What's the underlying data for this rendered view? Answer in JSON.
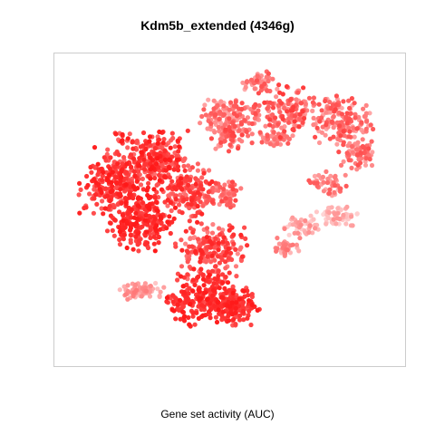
{
  "chart_data": {
    "type": "scatter",
    "title": "Kdm5b_extended (4346g)",
    "xlabel": "",
    "ylabel": "",
    "legend": "none",
    "grid": false,
    "axes_visible": false,
    "color_scale": {
      "low": "#ffffff",
      "high": "#ff0000",
      "meaning": "Gene set activity (AUC)"
    },
    "caption": "Gene set activity (AUC)",
    "xlim": [
      0,
      100
    ],
    "ylim": [
      0,
      100
    ],
    "clusters": [
      {
        "cx": 17,
        "cy": 59,
        "rx": 9,
        "ry": 10,
        "n": 220,
        "intensity": [
          0.65,
          1.0
        ]
      },
      {
        "cx": 28,
        "cy": 66,
        "rx": 10,
        "ry": 9,
        "n": 260,
        "intensity": [
          0.6,
          1.0
        ]
      },
      {
        "cx": 25,
        "cy": 46,
        "rx": 9,
        "ry": 9,
        "n": 220,
        "intensity": [
          0.75,
          1.0
        ]
      },
      {
        "cx": 38,
        "cy": 56,
        "rx": 8,
        "ry": 8,
        "n": 160,
        "intensity": [
          0.5,
          0.95
        ]
      },
      {
        "cx": 45,
        "cy": 37,
        "rx": 10,
        "ry": 9,
        "n": 200,
        "intensity": [
          0.45,
          0.95
        ]
      },
      {
        "cx": 42,
        "cy": 21,
        "rx": 9,
        "ry": 8,
        "n": 220,
        "intensity": [
          0.75,
          1.0
        ]
      },
      {
        "cx": 52,
        "cy": 19,
        "rx": 6,
        "ry": 6,
        "n": 140,
        "intensity": [
          0.7,
          1.0
        ]
      },
      {
        "cx": 25,
        "cy": 24,
        "rx": 6,
        "ry": 3,
        "n": 70,
        "intensity": [
          0.15,
          0.55
        ]
      },
      {
        "cx": 50,
        "cy": 74,
        "rx": 6,
        "ry": 5,
        "n": 80,
        "intensity": [
          0.35,
          0.8
        ]
      },
      {
        "cx": 50,
        "cy": 80,
        "rx": 8,
        "ry": 5,
        "n": 110,
        "intensity": [
          0.3,
          0.75
        ]
      },
      {
        "cx": 58,
        "cy": 91,
        "rx": 5,
        "ry": 3,
        "n": 45,
        "intensity": [
          0.3,
          0.75
        ]
      },
      {
        "cx": 66,
        "cy": 81,
        "rx": 9,
        "ry": 8,
        "n": 150,
        "intensity": [
          0.35,
          0.85
        ]
      },
      {
        "cx": 82,
        "cy": 78,
        "rx": 8,
        "ry": 8,
        "n": 150,
        "intensity": [
          0.3,
          0.8
        ]
      },
      {
        "cx": 86,
        "cy": 68,
        "rx": 5,
        "ry": 5,
        "n": 70,
        "intensity": [
          0.3,
          0.75
        ]
      },
      {
        "cx": 78,
        "cy": 58,
        "rx": 6,
        "ry": 4,
        "n": 50,
        "intensity": [
          0.25,
          0.7
        ]
      },
      {
        "cx": 71,
        "cy": 45,
        "rx": 6,
        "ry": 3,
        "n": 55,
        "intensity": [
          0.1,
          0.5
        ]
      },
      {
        "cx": 81,
        "cy": 48,
        "rx": 6,
        "ry": 3,
        "n": 55,
        "intensity": [
          0.1,
          0.45
        ]
      },
      {
        "cx": 66,
        "cy": 38,
        "rx": 4,
        "ry": 3,
        "n": 35,
        "intensity": [
          0.25,
          0.6
        ]
      },
      {
        "cx": 49,
        "cy": 55,
        "rx": 5,
        "ry": 4,
        "n": 50,
        "intensity": [
          0.4,
          0.8
        ]
      },
      {
        "cx": 63,
        "cy": 73,
        "rx": 4,
        "ry": 3,
        "n": 35,
        "intensity": [
          0.35,
          0.7
        ]
      }
    ]
  }
}
